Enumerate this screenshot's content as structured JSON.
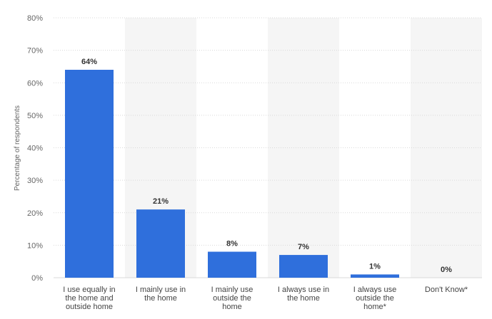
{
  "chart_data": {
    "type": "bar",
    "categories": [
      [
        "I use equally in",
        "the home and",
        "outside home"
      ],
      [
        "I mainly use in",
        "the home"
      ],
      [
        "I mainly use",
        "outside the",
        "home"
      ],
      [
        "I always use in",
        "the home"
      ],
      [
        "I always use",
        "outside the",
        "home*"
      ],
      [
        "Don't Know*"
      ]
    ],
    "values": [
      64,
      21,
      8,
      7,
      1,
      0
    ],
    "data_labels": [
      "64%",
      "21%",
      "8%",
      "7%",
      "1%",
      "0%"
    ],
    "ylabel": "Percentage of respondents",
    "ylim": [
      0,
      80
    ],
    "yticks": [
      0,
      10,
      20,
      30,
      40,
      50,
      60,
      70,
      80
    ],
    "ytick_labels": [
      "0%",
      "10%",
      "20%",
      "30%",
      "40%",
      "50%",
      "60%",
      "70%",
      "80%"
    ],
    "grid": true,
    "colors": {
      "bar": "#2f6fdc",
      "band": "#f5f5f5",
      "grid": "#d9d9d9"
    }
  }
}
